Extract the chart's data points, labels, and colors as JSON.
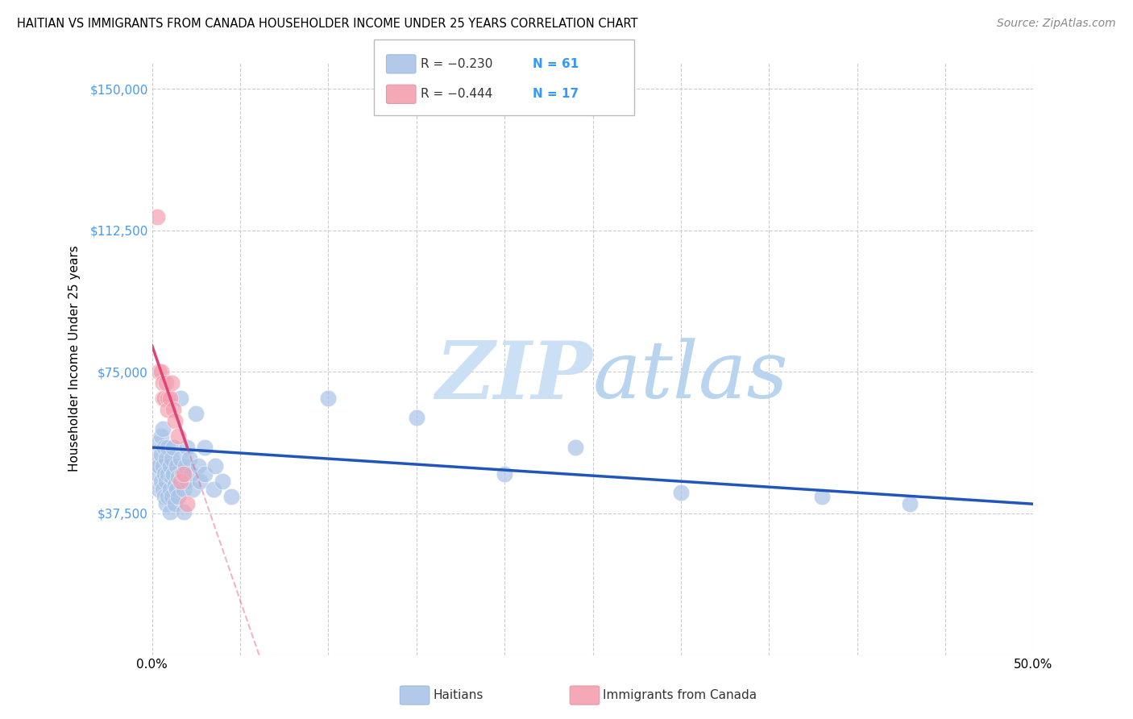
{
  "title": "HAITIAN VS IMMIGRANTS FROM CANADA HOUSEHOLDER INCOME UNDER 25 YEARS CORRELATION CHART",
  "source": "Source: ZipAtlas.com",
  "ylabel": "Householder Income Under 25 years",
  "yticks": [
    0,
    37500,
    75000,
    112500,
    150000
  ],
  "ytick_labels": [
    "",
    "$37,500",
    "$75,000",
    "$112,500",
    "$150,000"
  ],
  "xmin": 0.0,
  "xmax": 0.5,
  "ymin": 0,
  "ymax": 157000,
  "legend_blue_r": "R = −0.230",
  "legend_blue_n": "N = 61",
  "legend_pink_r": "R = −0.444",
  "legend_pink_n": "N = 17",
  "legend_label_blue": "Haitians",
  "legend_label_pink": "Immigrants from Canada",
  "blue_color": "#aac4e8",
  "pink_color": "#f4a0b0",
  "blue_line_color": "#2255bb",
  "pink_line_color": "#dd4477",
  "blue_scatter": [
    [
      0.002,
      52000
    ],
    [
      0.003,
      48000
    ],
    [
      0.003,
      56000
    ],
    [
      0.004,
      44000
    ],
    [
      0.004,
      50000
    ],
    [
      0.005,
      53000
    ],
    [
      0.005,
      58000
    ],
    [
      0.005,
      46000
    ],
    [
      0.006,
      60000
    ],
    [
      0.006,
      50000
    ],
    [
      0.006,
      44000
    ],
    [
      0.007,
      55000
    ],
    [
      0.007,
      48000
    ],
    [
      0.007,
      42000
    ],
    [
      0.008,
      52000
    ],
    [
      0.008,
      46000
    ],
    [
      0.008,
      40000
    ],
    [
      0.009,
      55000
    ],
    [
      0.009,
      48000
    ],
    [
      0.009,
      42000
    ],
    [
      0.01,
      50000
    ],
    [
      0.01,
      44000
    ],
    [
      0.01,
      38000
    ],
    [
      0.011,
      52000
    ],
    [
      0.011,
      47000
    ],
    [
      0.011,
      42000
    ],
    [
      0.012,
      55000
    ],
    [
      0.012,
      48000
    ],
    [
      0.013,
      45000
    ],
    [
      0.013,
      40000
    ],
    [
      0.014,
      50000
    ],
    [
      0.014,
      44000
    ],
    [
      0.015,
      47000
    ],
    [
      0.015,
      42000
    ],
    [
      0.016,
      68000
    ],
    [
      0.016,
      52000
    ],
    [
      0.017,
      48000
    ],
    [
      0.018,
      44000
    ],
    [
      0.018,
      38000
    ],
    [
      0.019,
      50000
    ],
    [
      0.02,
      55000
    ],
    [
      0.02,
      46000
    ],
    [
      0.021,
      52000
    ],
    [
      0.022,
      48000
    ],
    [
      0.023,
      44000
    ],
    [
      0.025,
      64000
    ],
    [
      0.026,
      50000
    ],
    [
      0.027,
      46000
    ],
    [
      0.03,
      55000
    ],
    [
      0.03,
      48000
    ],
    [
      0.035,
      44000
    ],
    [
      0.036,
      50000
    ],
    [
      0.04,
      46000
    ],
    [
      0.045,
      42000
    ],
    [
      0.1,
      68000
    ],
    [
      0.15,
      63000
    ],
    [
      0.2,
      48000
    ],
    [
      0.24,
      55000
    ],
    [
      0.3,
      43000
    ],
    [
      0.38,
      42000
    ],
    [
      0.43,
      40000
    ]
  ],
  "pink_scatter": [
    [
      0.003,
      116000
    ],
    [
      0.004,
      75000
    ],
    [
      0.005,
      75000
    ],
    [
      0.006,
      72000
    ],
    [
      0.006,
      68000
    ],
    [
      0.007,
      68000
    ],
    [
      0.008,
      72000
    ],
    [
      0.009,
      68000
    ],
    [
      0.009,
      65000
    ],
    [
      0.01,
      68000
    ],
    [
      0.011,
      72000
    ],
    [
      0.012,
      65000
    ],
    [
      0.013,
      62000
    ],
    [
      0.015,
      58000
    ],
    [
      0.016,
      46000
    ],
    [
      0.018,
      48000
    ],
    [
      0.02,
      40000
    ]
  ],
  "background_color": "#ffffff",
  "grid_color": "#cccccc",
  "watermark_zip": "ZIP",
  "watermark_atlas": "atlas",
  "watermark_fontsize": 72
}
